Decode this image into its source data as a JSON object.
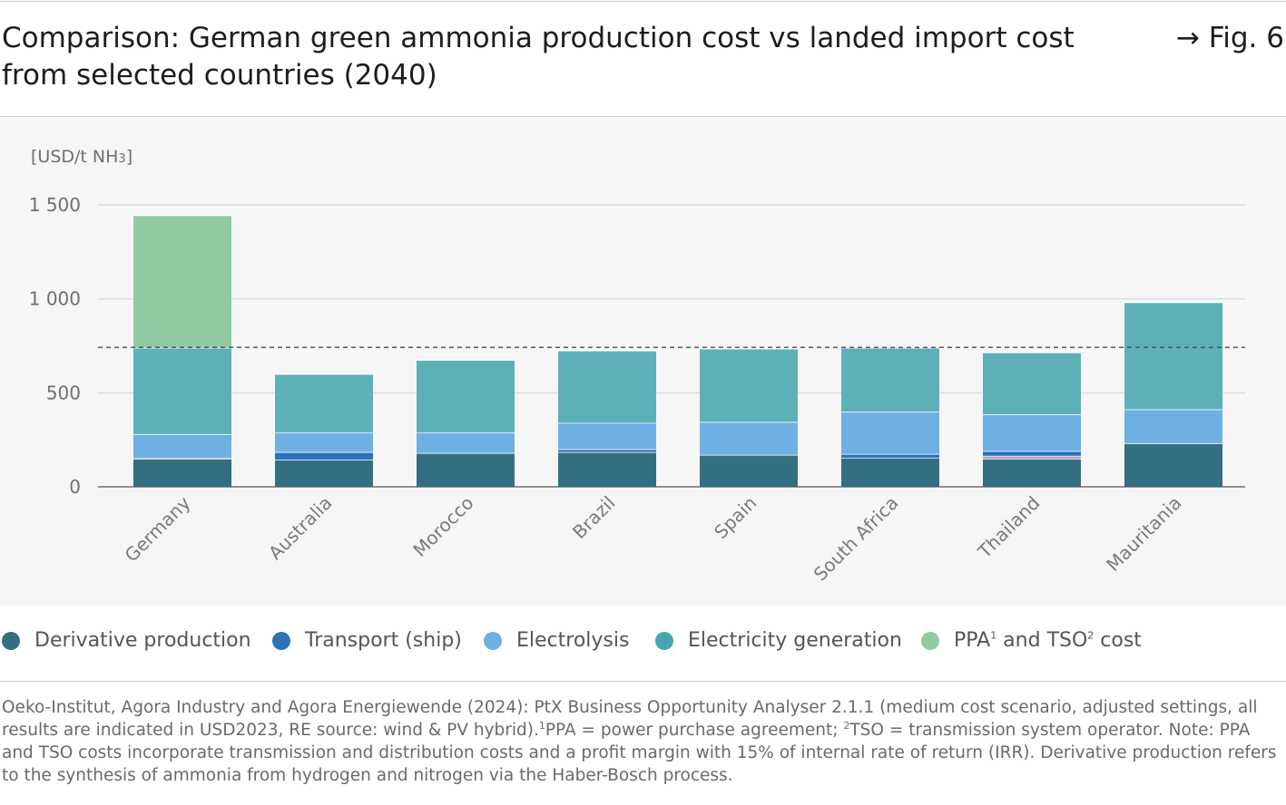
{
  "header": {
    "title": "Comparison: German green ammonia production cost vs landed import cost from selected countries (2040)",
    "fig_label": "→ Fig. 6"
  },
  "chart_data": {
    "type": "bar",
    "stacked": true,
    "ylabel_text": "[USD/t NH",
    "ylabel_sub": "3",
    "ylabel_end": "]",
    "ylim": [
      0,
      1500
    ],
    "yticks": [
      {
        "value": 0,
        "label": "0"
      },
      {
        "value": 500,
        "label": "500"
      },
      {
        "value": 1000,
        "label": "1 000"
      },
      {
        "value": 1500,
        "label": "1 500"
      }
    ],
    "categories": [
      "Germany",
      "Australia",
      "Morocco",
      "Brazil",
      "Spain",
      "South Africa",
      "Thailand",
      "Mauritania"
    ],
    "reference_line": 742,
    "grid": true,
    "series": [
      {
        "name": "Derivative production",
        "color": "#336f81",
        "values": [
          150,
          145,
          180,
          185,
          170,
          155,
          150,
          232
        ]
      },
      {
        "name": "",
        "color": "#b896c8",
        "values": [
          0,
          0,
          0,
          0,
          0,
          0,
          15,
          0
        ]
      },
      {
        "name": "Transport (ship)",
        "color": "#2b72b8",
        "values": [
          5,
          40,
          0,
          15,
          0,
          20,
          25,
          0
        ]
      },
      {
        "name": "Electrolysis",
        "color": "#6eb0e2",
        "values": [
          125,
          105,
          110,
          140,
          175,
          225,
          195,
          180
        ]
      },
      {
        "name": "Electricity generation",
        "color": "#5db0b8",
        "values": [
          460,
          310,
          385,
          385,
          390,
          340,
          330,
          570
        ]
      },
      {
        "name": "PPA¹ and TSO² cost",
        "color": "#8fcaa2",
        "values": [
          705,
          0,
          0,
          0,
          0,
          0,
          0,
          0
        ]
      }
    ]
  },
  "legend": [
    {
      "label": "Derivative production",
      "color": "#336f81"
    },
    {
      "label": "Transport (ship)",
      "color": "#2b72b8"
    },
    {
      "label": "Electrolysis",
      "color": "#6eb0e2"
    },
    {
      "label": "Electricity generation",
      "color": "#45a7ad"
    },
    {
      "label_a": "PPA",
      "sup_a": "1",
      "label_b": " and TSO",
      "sup_b": "2",
      "label_c": " cost",
      "color": "#8fcaa2"
    }
  ],
  "source": {
    "line1": "Oeko-Institut, Agora Industry and Agora Energiewende (2024): PtX Business Opportunity Analyser 2.1.1 (medium cost scenario, adjusted settings, all results are indicated in USD2023, RE source: wind & PV hybrid).",
    "sup1": "1",
    "line2": "PPA = power purchase agreement;",
    "sup2": "2",
    "line3": "TSO = transmission system operator. Note: PPA and TSO costs incorporate transmission and distribution costs and a profit margin with 15% of internal rate of return (IRR). Derivative production refers to the synthesis of ammonia from hydrogen and nitrogen via the Haber-Bosch process."
  }
}
